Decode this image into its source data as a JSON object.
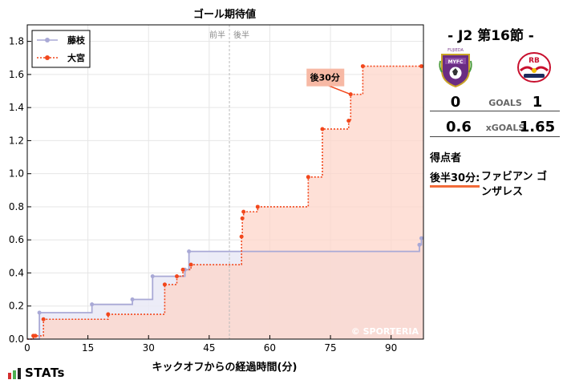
{
  "chart_data": {
    "type": "line",
    "title": "ゴール期待値",
    "xlabel": "キックオフからの経過時間(分)",
    "ylabel": "",
    "xlim": [
      0,
      98
    ],
    "ylim": [
      0,
      1.9
    ],
    "x_ticks": [
      0,
      15,
      30,
      45,
      60,
      75,
      90
    ],
    "y_ticks": [
      0.0,
      0.2,
      0.4,
      0.6,
      0.8,
      1.0,
      1.2,
      1.4,
      1.6,
      1.8
    ],
    "grid": true,
    "legend_position": "top-left",
    "halftime_x": 50,
    "halftime_labels": [
      "前半",
      "後半"
    ],
    "series": [
      {
        "name": "藤枝",
        "color": "#a9a9d6",
        "fill": "#e9e9f6",
        "x": [
          3,
          16,
          26,
          31,
          39,
          40,
          97,
          97.5
        ],
        "y": [
          0.16,
          0.21,
          0.24,
          0.38,
          0.42,
          0.53,
          0.57,
          0.61
        ]
      },
      {
        "name": "大宮",
        "color": "#f2471c",
        "fill": "#fdd6c9",
        "x": [
          1.5,
          2,
          4,
          20,
          34,
          37,
          38.5,
          40.5,
          53,
          53.2,
          53.5,
          57,
          69.5,
          73,
          79.5,
          80,
          83,
          97.5
        ],
        "y": [
          0.02,
          0.02,
          0.12,
          0.15,
          0.33,
          0.38,
          0.42,
          0.45,
          0.62,
          0.73,
          0.77,
          0.8,
          0.98,
          1.27,
          1.32,
          1.48,
          1.65,
          1.65
        ]
      }
    ],
    "annotations": [
      {
        "text": "後30分",
        "x": 80,
        "y": 1.48
      }
    ],
    "watermark": "© SPORTERIA"
  },
  "match": {
    "title": "-  J2 第16節  -",
    "home_crest": "fujieda-crest-icon",
    "away_crest": "rb-omiya-crest-icon",
    "goals_label": "GOALS",
    "home_goals": "0",
    "away_goals": "1",
    "xg_label": "xGOALS",
    "home_xg": "0.6",
    "away_xg": "1.65",
    "scorers_heading": "得点者",
    "scorers": [
      {
        "time": "後半30分:",
        "name": "ファビアン ゴンザレス"
      }
    ]
  },
  "brand": {
    "logo": "stats-logo-icon",
    "text": "STATs"
  }
}
